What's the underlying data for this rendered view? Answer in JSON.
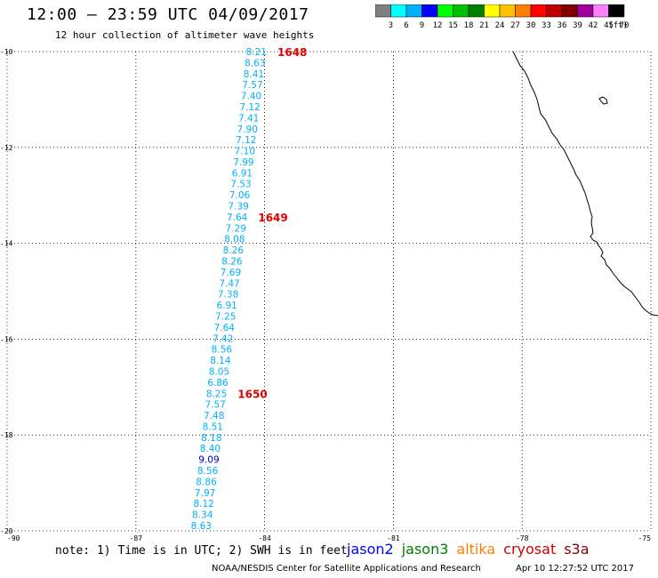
{
  "header": {
    "title": "12:00 — 23:59 UTC 04/09/2017",
    "subtitle": "12 hour collection of altimeter wave heights"
  },
  "legend": {
    "unit": "(ft)",
    "colors": [
      "#808080",
      "#00ffff",
      "#00b0ff",
      "#0000ff",
      "#00ff00",
      "#00c000",
      "#008000",
      "#ffff00",
      "#ffc000",
      "#ff8000",
      "#ff0000",
      "#c00000",
      "#800000",
      "#a000a0",
      "#ff80ff",
      "#000000"
    ],
    "labels": [
      "3",
      "6",
      "9",
      "12",
      "15",
      "18",
      "21",
      "24",
      "27",
      "30",
      "33",
      "36",
      "39",
      "42",
      "45",
      "70"
    ]
  },
  "map": {
    "lat_labels": [
      "-10",
      "-12",
      "-14",
      "-16",
      "-18",
      "-20"
    ],
    "lon_labels": [
      "-90",
      "-87",
      "-84",
      "-81",
      "-78",
      "-75"
    ],
    "lat_range": [
      -20,
      -10
    ],
    "lon_range": [
      -90,
      -75
    ],
    "grid": "dotted",
    "track_color": "#00b0ff",
    "highlight_color": "#0000c0",
    "pass_label_color": "#e00000",
    "swh_values": [
      "8.21",
      "8.63",
      "8.41",
      "7.57",
      "7.40",
      "7.12",
      "7.41",
      "7.90",
      "7.12",
      "7.10",
      "7.99",
      "6.91",
      "7.53",
      "7.06",
      "7.39",
      "7.64",
      "7.29",
      "8.08",
      "8.26",
      "8.26",
      "7.69",
      "7.47",
      "7.38",
      "6.91",
      "7.25",
      "7.64",
      "7.42",
      "8.56",
      "8.14",
      "8.05",
      "6.86",
      "8.25",
      "7.57",
      "7.48",
      "8.51",
      "8.18",
      "8.40",
      "9.09",
      "8.56",
      "8.86",
      "7.97",
      "8.12",
      "8.34",
      "8.63"
    ],
    "highlighted_value": "9.09",
    "passes": [
      {
        "label": "1648",
        "at_value_index": 0
      },
      {
        "label": "1649",
        "at_value_index": 15
      },
      {
        "label": "1650",
        "at_value_index": 31
      }
    ]
  },
  "footer": {
    "note": "note: 1) Time is in UTC; 2) SWH is in feet",
    "satellites": [
      {
        "name": "jason2",
        "color": "#0000ff"
      },
      {
        "name": "jason3",
        "color": "#008000"
      },
      {
        "name": "altika",
        "color": "#ff8000"
      },
      {
        "name": "cryosat",
        "color": "#d00000"
      },
      {
        "name": "s3a",
        "color": "#800000"
      }
    ],
    "credit": "NOAA/NESDIS Center for Satellite Applications and Research",
    "timestamp": "Apr 10 12:27:52 UTC 2017"
  }
}
